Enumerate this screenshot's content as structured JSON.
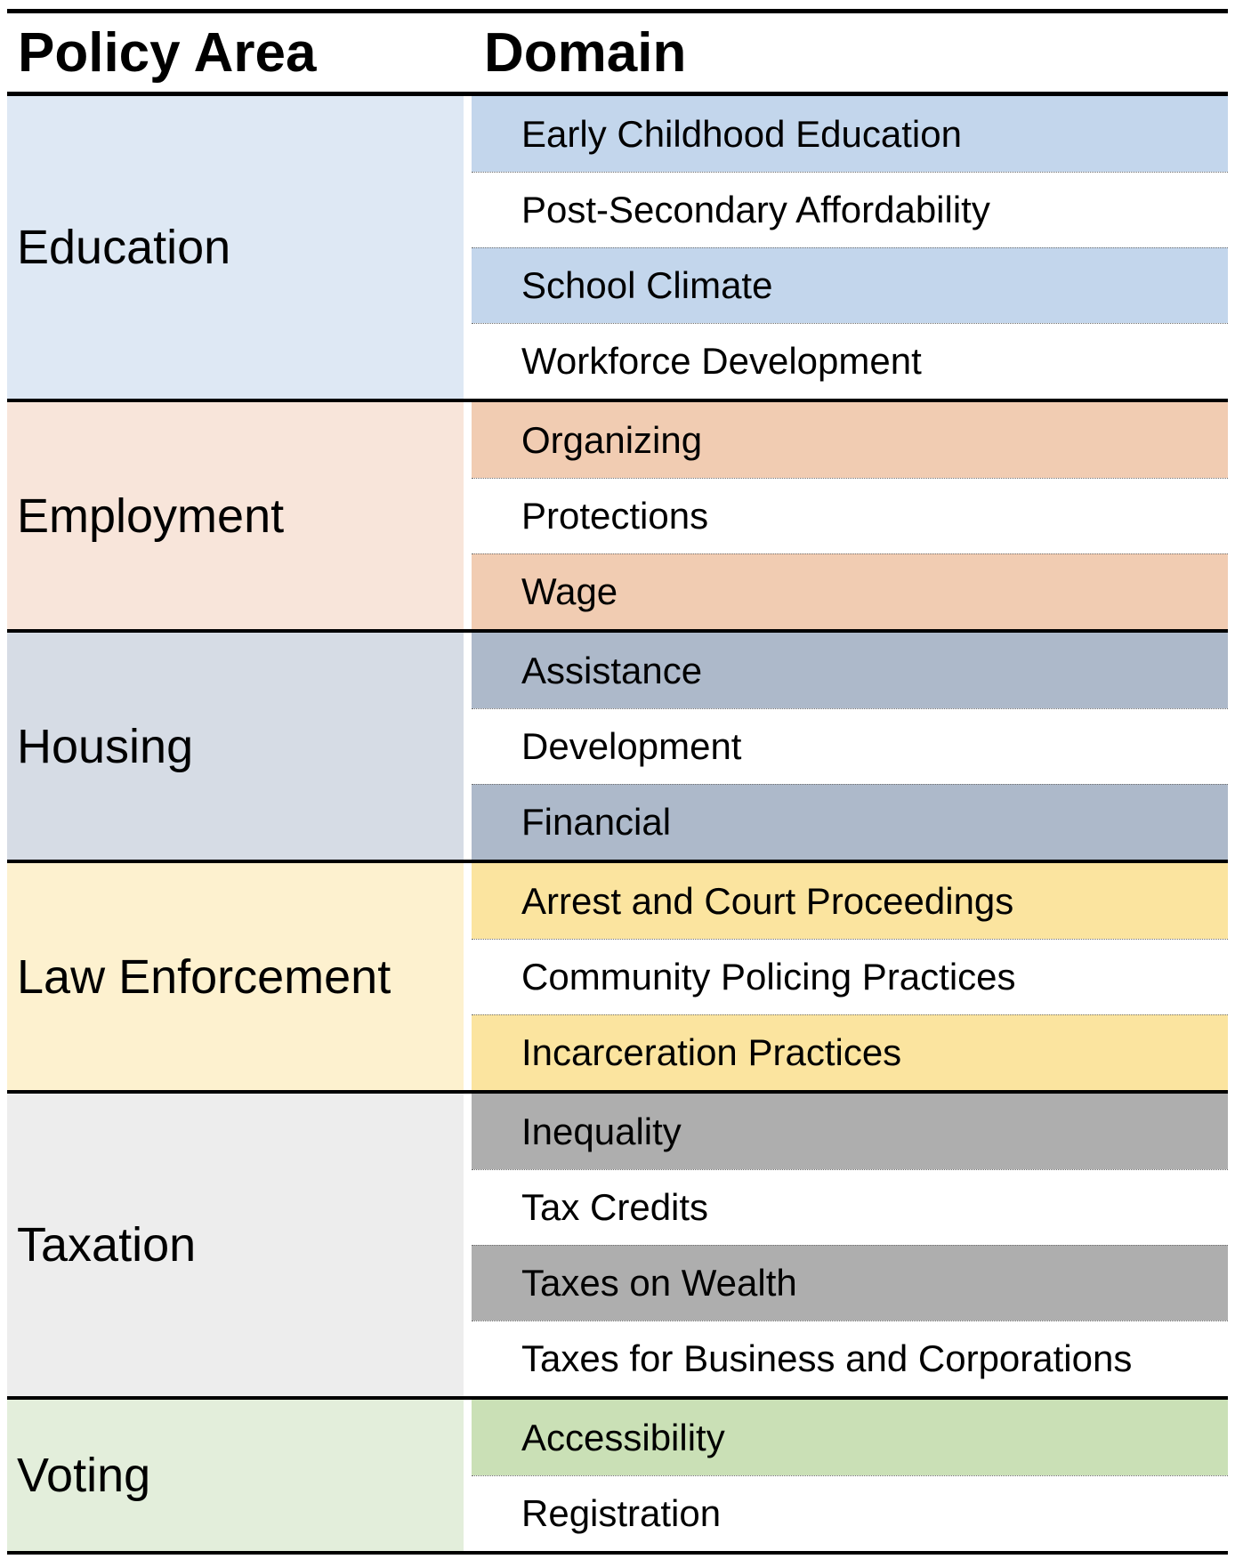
{
  "header": {
    "policy_area": "Policy Area",
    "domain": "Domain"
  },
  "groups": [
    {
      "area": "Education",
      "area_color": "#dee8f4",
      "band_color": "#c3d6ec",
      "domains": [
        "Early Childhood Education",
        "Post-Secondary Affordability",
        "School Climate",
        "Workforce Development"
      ]
    },
    {
      "area": "Employment",
      "area_color": "#f8e5da",
      "band_color": "#f1ccb2",
      "domains": [
        "Organizing",
        "Protections",
        "Wage"
      ]
    },
    {
      "area": "Housing",
      "area_color": "#d6dce5",
      "band_color": "#adb9ca",
      "domains": [
        "Assistance",
        "Development",
        "Financial"
      ]
    },
    {
      "area": "Law Enforcement",
      "area_color": "#fdf1cf",
      "band_color": "#fbe49f",
      "domains": [
        "Arrest and Court Proceedings",
        "Community Policing Practices",
        "Incarceration Practices"
      ]
    },
    {
      "area": "Taxation",
      "area_color": "#ededed",
      "band_color": "#aeaeae",
      "domains": [
        "Inequality",
        "Tax Credits",
        "Taxes on Wealth",
        "Taxes for Business and Corporations"
      ]
    },
    {
      "area": "Voting",
      "area_color": "#e3eedb",
      "band_color": "#cae0b6",
      "domains": [
        "Accessibility",
        "Registration"
      ]
    }
  ]
}
